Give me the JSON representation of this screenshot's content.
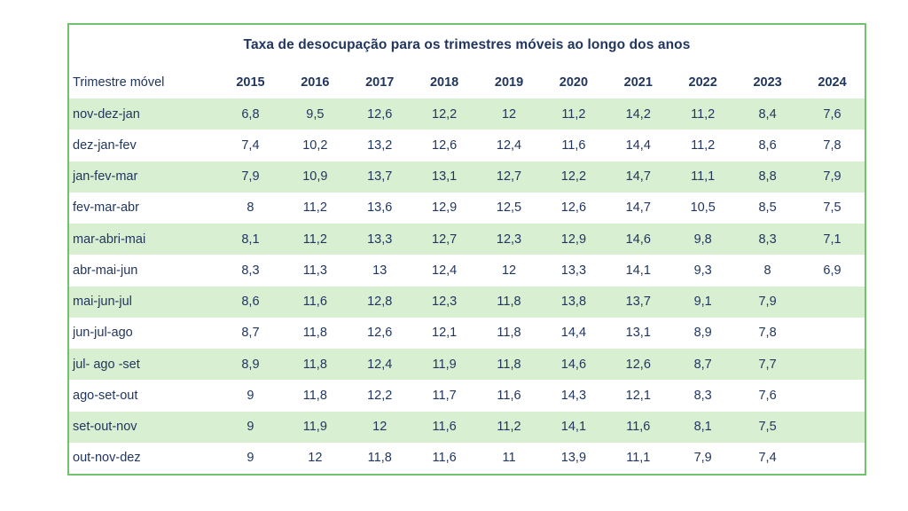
{
  "colors": {
    "border_green": "#72c16c",
    "row_green": "#d9efd2",
    "row_white": "#ffffff",
    "text_navy": "#21365f"
  },
  "table": {
    "title": "Taxa de desocupação para os trimestres móveis ao longo dos anos",
    "row_header_label": "Trimestre móvel",
    "years": [
      "2015",
      "2016",
      "2017",
      "2018",
      "2019",
      "2020",
      "2021",
      "2022",
      "2023",
      "2024"
    ]
  },
  "chart_data": {
    "type": "table",
    "title": "Taxa de desocupação para os trimestres móveis ao longo dos anos",
    "columns": [
      "Trimestre móvel",
      "2015",
      "2016",
      "2017",
      "2018",
      "2019",
      "2020",
      "2021",
      "2022",
      "2023",
      "2024"
    ],
    "rows": [
      {
        "label": "nov-dez-jan",
        "values": [
          6.8,
          9.5,
          12.6,
          12.2,
          12,
          11.2,
          14.2,
          11.2,
          8.4,
          7.6
        ]
      },
      {
        "label": "dez-jan-fev",
        "values": [
          7.4,
          10.2,
          13.2,
          12.6,
          12.4,
          11.6,
          14.4,
          11.2,
          8.6,
          7.8
        ]
      },
      {
        "label": "jan-fev-mar",
        "values": [
          7.9,
          10.9,
          13.7,
          13.1,
          12.7,
          12.2,
          14.7,
          11.1,
          8.8,
          7.9
        ]
      },
      {
        "label": "fev-mar-abr",
        "values": [
          8,
          11.2,
          13.6,
          12.9,
          12.5,
          12.6,
          14.7,
          10.5,
          8.5,
          7.5
        ]
      },
      {
        "label": "mar-abri-mai",
        "values": [
          8.1,
          11.2,
          13.3,
          12.7,
          12.3,
          12.9,
          14.6,
          9.8,
          8.3,
          7.1
        ]
      },
      {
        "label": "abr-mai-jun",
        "values": [
          8.3,
          11.3,
          13,
          12.4,
          12,
          13.3,
          14.1,
          9.3,
          8,
          6.9
        ]
      },
      {
        "label": "mai-jun-jul",
        "values": [
          8.6,
          11.6,
          12.8,
          12.3,
          11.8,
          13.8,
          13.7,
          9.1,
          7.9,
          null
        ]
      },
      {
        "label": "jun-jul-ago",
        "values": [
          8.7,
          11.8,
          12.6,
          12.1,
          11.8,
          14.4,
          13.1,
          8.9,
          7.8,
          null
        ]
      },
      {
        "label": "jul- ago -set",
        "values": [
          8.9,
          11.8,
          12.4,
          11.9,
          11.8,
          14.6,
          12.6,
          8.7,
          7.7,
          null
        ]
      },
      {
        "label": "ago-set-out",
        "values": [
          9,
          11.8,
          12.2,
          11.7,
          11.6,
          14.3,
          12.1,
          8.3,
          7.6,
          null
        ]
      },
      {
        "label": "set-out-nov",
        "values": [
          9,
          11.9,
          12,
          11.6,
          11.2,
          14.1,
          11.6,
          8.1,
          7.5,
          null
        ]
      },
      {
        "label": "out-nov-dez",
        "values": [
          9,
          12,
          11.8,
          11.6,
          11,
          13.9,
          11.1,
          7.9,
          7.4,
          null
        ]
      }
    ]
  }
}
